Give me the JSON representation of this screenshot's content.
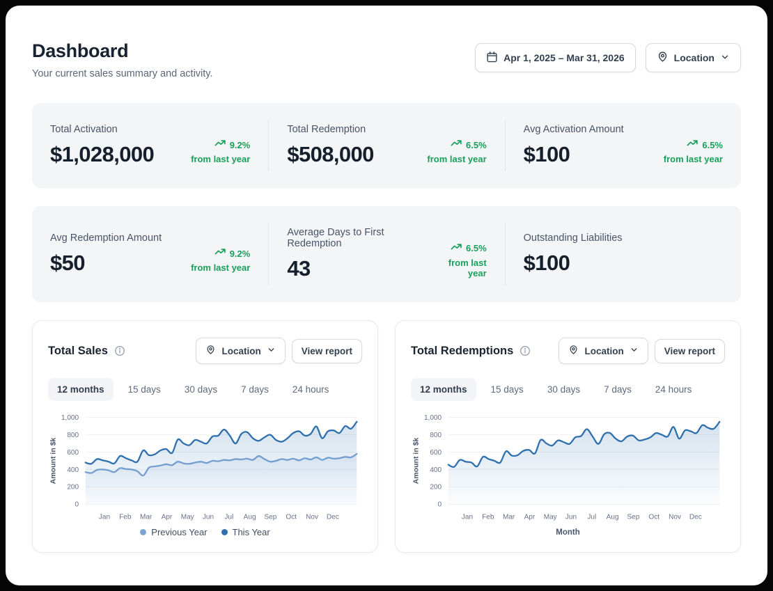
{
  "page": {
    "title": "Dashboard",
    "subtitle": "Your current sales summary and activity."
  },
  "header": {
    "date_range_label": "Apr 1, 2025 – Mar 31, 2026",
    "location_label": "Location"
  },
  "colors": {
    "trend_green": "#17a05a",
    "this_year_blue": "#2e6fad",
    "previous_year_blue": "#7ca4d4",
    "card_gray": "#f4f5f7"
  },
  "stats": {
    "row1": [
      {
        "label": "Total Activation",
        "value": "$1,028,000",
        "trend": {
          "pct": "9.2%",
          "caption": "from last year"
        }
      },
      {
        "label": "Total Redemption",
        "value": "$508,000",
        "trend": {
          "pct": "6.5%",
          "caption": "from last year"
        }
      },
      {
        "label": "Avg Activation Amount",
        "value": "$100",
        "trend": {
          "pct": "6.5%",
          "caption": "from last year"
        }
      }
    ],
    "row2": [
      {
        "label": "Avg Redemption Amount",
        "value": "$50",
        "trend": {
          "pct": "9.2%",
          "caption": "from last year"
        }
      },
      {
        "label": "Average Days to First Redemption",
        "value": "43",
        "trend": {
          "pct": "6.5%",
          "caption": "from last year"
        }
      },
      {
        "label": "Outstanding Liabilities",
        "value": "$100",
        "trend": null
      }
    ]
  },
  "charts": [
    {
      "title": "Total Sales",
      "location_label": "Location",
      "view_report_label": "View report",
      "tabs": [
        "12 months",
        "15 days",
        "30 days",
        "7 days",
        "24 hours"
      ],
      "active_tab": 0,
      "legend": [
        {
          "label": "Previous Year",
          "color": "#7ca4d4"
        },
        {
          "label": "This Year",
          "color": "#2e6fad"
        }
      ]
    },
    {
      "title": "Total Redemptions",
      "location_label": "Location",
      "view_report_label": "View report",
      "tabs": [
        "12 months",
        "15 days",
        "30 days",
        "7 days",
        "24 hours"
      ],
      "active_tab": 0,
      "xlabel": "Month"
    }
  ],
  "chart_data": [
    {
      "type": "area",
      "title": "Total Sales",
      "xlabel": "",
      "ylabel": "Amount in $k",
      "ylim": [
        0,
        1000
      ],
      "yticks": [
        0,
        200,
        400,
        600,
        800,
        1000
      ],
      "ytick_labels": [
        "0",
        "200",
        "400",
        "600",
        "800",
        "1,000"
      ],
      "x_tick_labels": [
        "Jan",
        "Feb",
        "Mar",
        "Apr",
        "May",
        "Jun",
        "Jul",
        "Aug",
        "Sep",
        "Oct",
        "Nov",
        "Dec"
      ],
      "grid": true,
      "legend_position": "bottom",
      "series": [
        {
          "name": "Previous Year",
          "color": "#7ca4d4",
          "fill_opacity": 0.14,
          "values": [
            370,
            360,
            395,
            400,
            390,
            370,
            415,
            405,
            400,
            380,
            330,
            420,
            435,
            445,
            460,
            450,
            490,
            470,
            465,
            480,
            490,
            475,
            500,
            495,
            510,
            505,
            520,
            515,
            525,
            510,
            555,
            520,
            490,
            500,
            520,
            510,
            525,
            505,
            530,
            515,
            540,
            510,
            535,
            525,
            530,
            545,
            540,
            580
          ]
        },
        {
          "name": "This Year",
          "color": "#2e6fad",
          "fill_opacity": 0.2,
          "values": [
            480,
            465,
            520,
            505,
            490,
            470,
            555,
            530,
            505,
            490,
            620,
            565,
            575,
            620,
            635,
            590,
            745,
            700,
            680,
            740,
            720,
            700,
            780,
            790,
            860,
            790,
            700,
            810,
            830,
            760,
            730,
            770,
            800,
            740,
            720,
            760,
            820,
            840,
            790,
            810,
            895,
            760,
            840,
            850,
            820,
            900,
            870,
            950
          ]
        }
      ]
    },
    {
      "type": "area",
      "title": "Total Redemptions",
      "xlabel": "Month",
      "ylabel": "Amount in $k",
      "ylim": [
        0,
        1000
      ],
      "yticks": [
        0,
        200,
        400,
        600,
        800,
        1000
      ],
      "ytick_labels": [
        "0",
        "200",
        "400",
        "600",
        "800",
        "1,000"
      ],
      "x_tick_labels": [
        "Jan",
        "Feb",
        "Mar",
        "Apr",
        "May",
        "Jun",
        "Jul",
        "Aug",
        "Sep",
        "Oct",
        "Nov",
        "Dec"
      ],
      "grid": true,
      "legend_position": "none",
      "series": [
        {
          "name": "This Year",
          "color": "#2e6fad",
          "fill_opacity": 0.2,
          "values": [
            455,
            430,
            510,
            490,
            480,
            435,
            545,
            520,
            500,
            480,
            610,
            560,
            565,
            615,
            625,
            585,
            740,
            700,
            675,
            735,
            715,
            695,
            770,
            785,
            865,
            780,
            695,
            805,
            820,
            755,
            725,
            780,
            790,
            735,
            745,
            770,
            820,
            800,
            780,
            890,
            755,
            850,
            840,
            820,
            910,
            880,
            870,
            950
          ]
        }
      ]
    }
  ]
}
